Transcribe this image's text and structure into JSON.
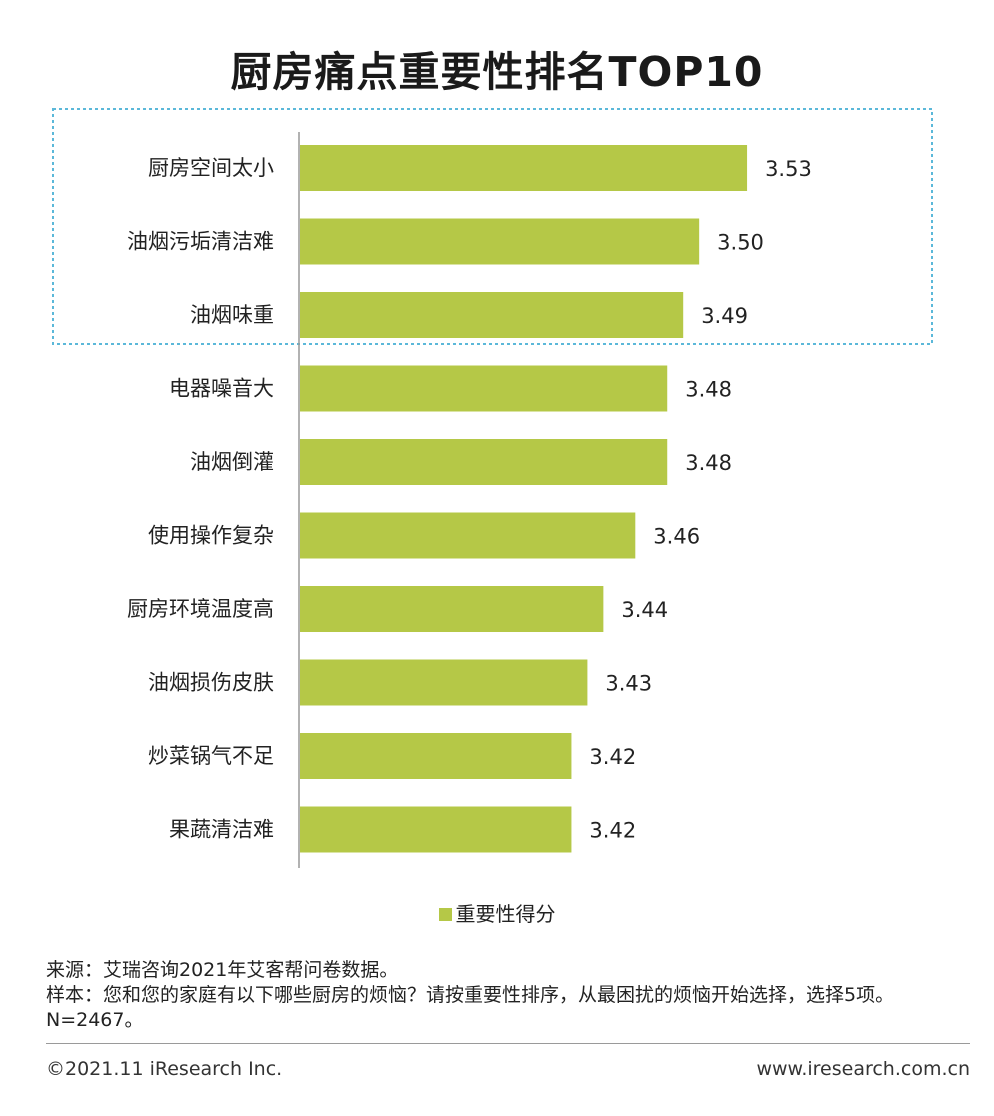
{
  "chart_data": {
    "type": "bar",
    "orientation": "horizontal",
    "title": "厨房痛点重要性排名TOP10",
    "categories": [
      "厨房空间太小",
      "油烟污垢清洁难",
      "油烟味重",
      "电器噪音大",
      "油烟倒灌",
      "使用操作复杂",
      "厨房环境温度高",
      "油烟损伤皮肤",
      "炒菜锅气不足",
      "果蔬清洁难"
    ],
    "series": [
      {
        "name": "重要性得分",
        "values": [
          3.53,
          3.5,
          3.49,
          3.48,
          3.48,
          3.46,
          3.44,
          3.43,
          3.42,
          3.42
        ]
      }
    ],
    "value_labels": [
      "3.53",
      "3.50",
      "3.49",
      "3.48",
      "3.48",
      "3.46",
      "3.44",
      "3.43",
      "3.42",
      "3.42"
    ],
    "xlim": [
      3.25,
      3.55
    ],
    "highlight_top_n": 3,
    "legend": "bottom-center"
  },
  "colors": {
    "bar": "#b5c847",
    "highlight_border": "#5bb8d9",
    "axis": "#999999"
  },
  "notes": {
    "source": "来源：艾瑞咨询2021年艾客帮问卷数据。",
    "sample": "样本：您和您的家庭有以下哪些厨房的烦恼？请按重要性排序，从最困扰的烦恼开始选择，选择5项。N=2467。"
  },
  "footer": {
    "copyright": "©2021.11 iResearch Inc.",
    "website": "www.iresearch.com.cn"
  }
}
